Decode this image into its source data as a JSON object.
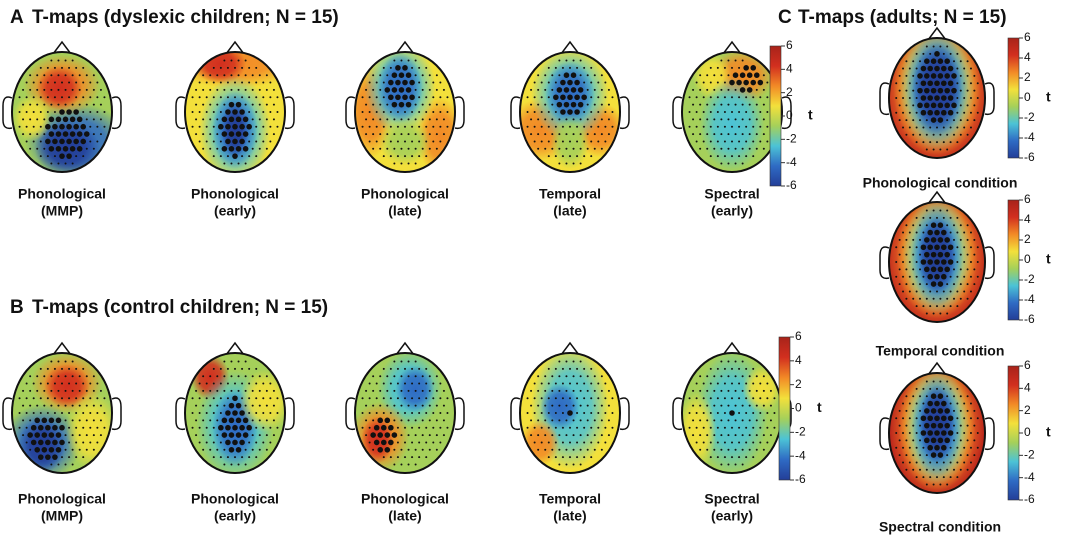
{
  "panels": [
    {
      "letter": "A",
      "title": "T-maps (dyslexic children; N = 15)",
      "maps": [
        {
          "label": [
            "Phonological",
            "(MMP)"
          ]
        },
        {
          "label": [
            "Phonological",
            "(early)"
          ]
        },
        {
          "label": [
            "Phonological",
            "(late)"
          ]
        },
        {
          "label": [
            "Temporal",
            "(late)"
          ]
        },
        {
          "label": [
            "Spectral",
            "(early)"
          ]
        }
      ],
      "colorbar": {
        "label": "t",
        "ticks": [
          6,
          4,
          2,
          0,
          -2,
          -4,
          -6
        ]
      }
    },
    {
      "letter": "B",
      "title": "T-maps (control children; N = 15)",
      "maps": [
        {
          "label": [
            "Phonological",
            "(MMP)"
          ]
        },
        {
          "label": [
            "Phonological",
            "(early)"
          ]
        },
        {
          "label": [
            "Phonological",
            "(late)"
          ]
        },
        {
          "label": [
            "Temporal",
            "(late)"
          ]
        },
        {
          "label": [
            "Spectral",
            "(early)"
          ]
        }
      ],
      "colorbar": {
        "label": "t",
        "ticks": [
          6,
          4,
          2,
          0,
          -2,
          -4,
          -6
        ]
      }
    },
    {
      "letter": "C",
      "title": "T-maps (adults; N = 15)",
      "maps": [
        {
          "label": [
            "Phonological condition"
          ],
          "colorbar": {
            "label": "t",
            "ticks": [
              6,
              4,
              2,
              0,
              -2,
              -4,
              -6
            ]
          }
        },
        {
          "label": [
            "Temporal condition"
          ],
          "colorbar": {
            "label": "t",
            "ticks": [
              6,
              4,
              2,
              0,
              -2,
              -4,
              -6
            ]
          }
        },
        {
          "label": [
            "Spectral condition"
          ],
          "colorbar": {
            "label": "t",
            "ticks": [
              6,
              4,
              2,
              0,
              -2,
              -4,
              -6
            ]
          }
        }
      ]
    }
  ]
}
